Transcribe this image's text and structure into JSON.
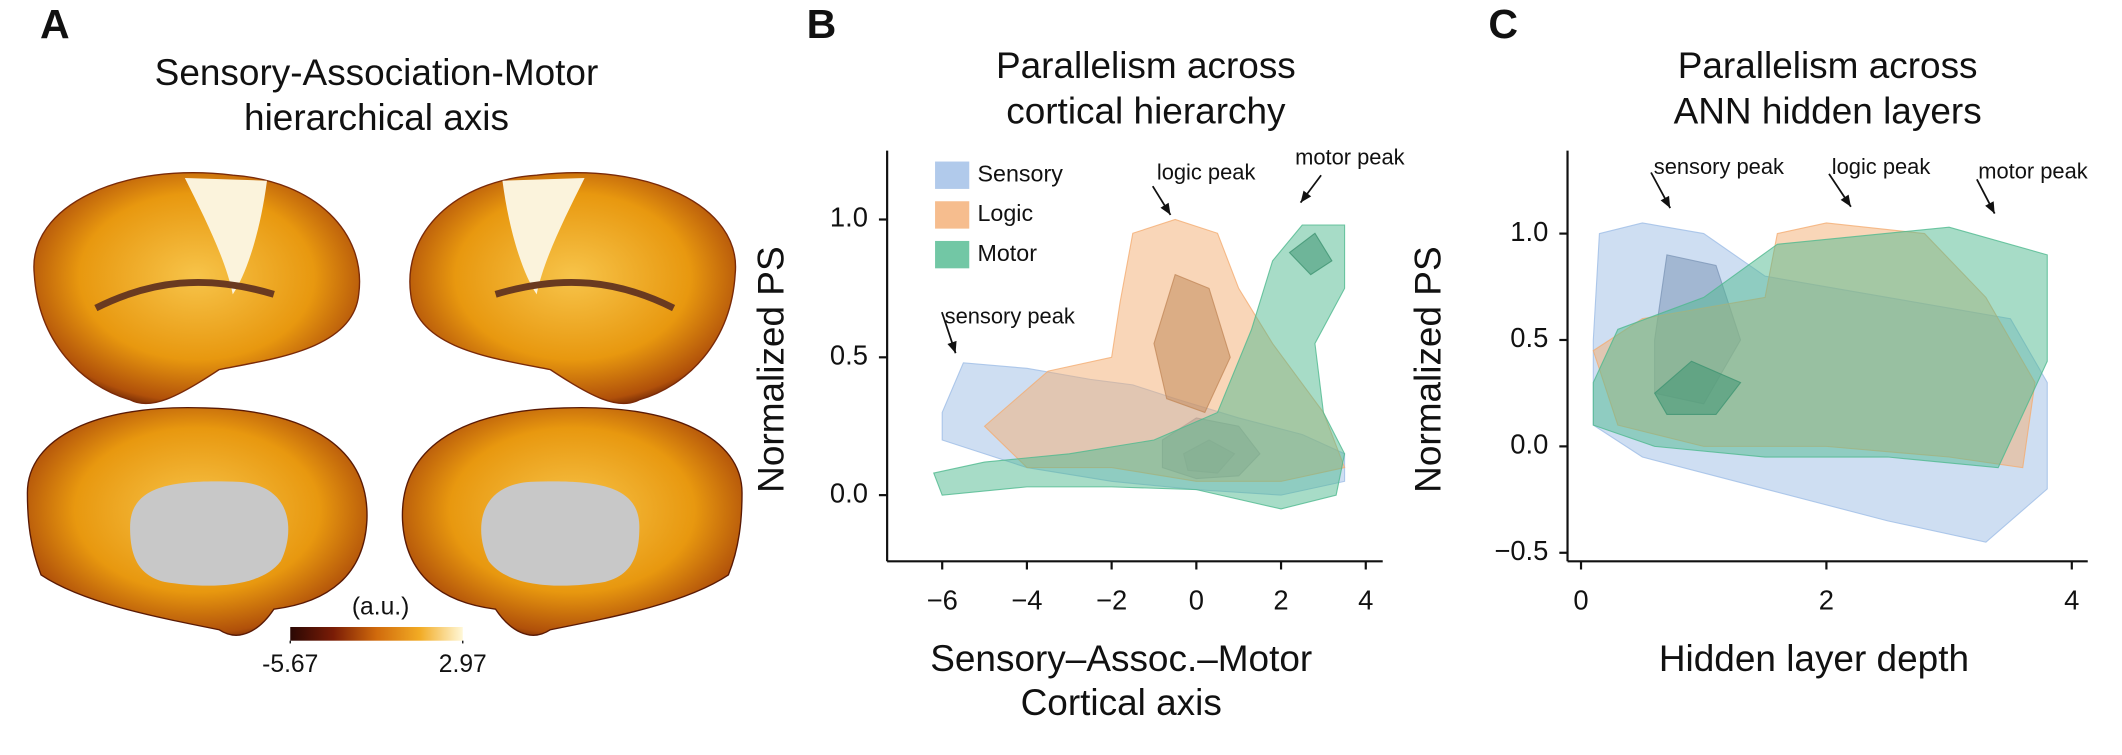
{
  "chart_data": [
    {
      "type": "colorbar",
      "panel": "A",
      "title": [
        "Sensory-Association-Motor",
        "hierarchical axis"
      ],
      "label": "(a.u.)",
      "clim": [
        -5.67,
        2.97
      ],
      "ticks": [
        -5.67,
        2.97
      ],
      "colors": [
        "#2a0804",
        "#7a1c06",
        "#d06a0c",
        "#f2ab24",
        "#fff8d8"
      ]
    },
    {
      "type": "kde",
      "panel": "B",
      "title": [
        "Parallelism across",
        "cortical hierarchy"
      ],
      "xlabel": [
        "Sensory–Assoc.–Motor",
        "Cortical axis"
      ],
      "ylabel": "Normalized PS",
      "xlim": [
        -7.3,
        4.4
      ],
      "ylim": [
        -0.24,
        1.25
      ],
      "xticks": [
        {
          "value": -6,
          "label": "−6"
        },
        {
          "value": -4,
          "label": "−4"
        },
        {
          "value": -2,
          "label": "−2"
        },
        0,
        2,
        4
      ],
      "yticks": [
        {
          "value": 0,
          "label": "0.0"
        },
        {
          "value": 0.5,
          "label": "0.5"
        },
        {
          "value": 1,
          "label": "1.0"
        }
      ],
      "annotations": [
        "sensory peak",
        "logic peak",
        "motor peak"
      ],
      "series": [
        {
          "name": "Sensory",
          "color": "#9dbde6",
          "contours": [
            {
              "x": [
                -6.0,
                -5.5,
                -4,
                -2.5,
                -1.5,
                -0.5,
                1,
                2.5,
                3.5,
                3.5,
                2,
                0,
                -2,
                -4,
                -6
              ],
              "y": [
                0.3,
                0.48,
                0.46,
                0.42,
                0.4,
                0.35,
                0.28,
                0.22,
                0.15,
                0.05,
                0.0,
                0.02,
                0.05,
                0.1,
                0.2
              ]
            },
            {
              "x": [
                -0.8,
                0,
                1,
                1.5,
                1,
                0,
                -0.8
              ],
              "y": [
                0.2,
                0.28,
                0.25,
                0.15,
                0.07,
                0.06,
                0.1
              ]
            },
            {
              "x": [
                -0.3,
                0.3,
                0.9,
                0.5,
                -0.2
              ],
              "y": [
                0.15,
                0.2,
                0.15,
                0.08,
                0.09
              ]
            }
          ]
        },
        {
          "name": "Logic",
          "color": "#f4ad72",
          "contours": [
            {
              "x": [
                -3.5,
                -2,
                -1.8,
                -1.5,
                -0.5,
                0.5,
                1,
                1.8,
                3,
                3.5,
                2,
                0,
                -2,
                -4,
                -5
              ],
              "y": [
                0.45,
                0.5,
                0.7,
                0.95,
                1.0,
                0.95,
                0.75,
                0.55,
                0.3,
                0.1,
                0.05,
                0.05,
                0.1,
                0.1,
                0.25
              ]
            },
            {
              "x": [
                -1,
                -0.5,
                0.3,
                0.8,
                0.2,
                -0.7
              ],
              "y": [
                0.55,
                0.8,
                0.75,
                0.5,
                0.3,
                0.35
              ]
            }
          ]
        },
        {
          "name": "Motor",
          "color": "#4fb98f",
          "contours": [
            {
              "x": [
                1.8,
                2.5,
                3.5,
                3.5,
                2.8,
                3,
                3.5,
                3.3,
                2,
                0,
                -2,
                -4,
                -6,
                -6.2,
                -5,
                -3,
                -1,
                0.5,
                1.3
              ],
              "y": [
                0.85,
                0.98,
                0.98,
                0.75,
                0.55,
                0.3,
                0.15,
                0.0,
                -0.05,
                0.02,
                0.03,
                0.03,
                0.0,
                0.08,
                0.12,
                0.15,
                0.2,
                0.3,
                0.6
              ]
            },
            {
              "x": [
                2.2,
                2.8,
                3.2,
                2.7
              ],
              "y": [
                0.88,
                0.95,
                0.85,
                0.8
              ]
            }
          ]
        }
      ]
    },
    {
      "type": "kde",
      "panel": "C",
      "title": [
        "Parallelism across",
        "ANN hidden layers"
      ],
      "xlabel": [
        "Hidden layer depth"
      ],
      "ylabel": "Normalized PS",
      "xlim": [
        -0.11,
        4.13
      ],
      "ylim": [
        -0.54,
        1.39
      ],
      "xticks": [
        0,
        2,
        4
      ],
      "yticks": [
        {
          "value": -0.5,
          "label": "−0.5"
        },
        {
          "value": 0,
          "label": "0.0"
        },
        {
          "value": 0.5,
          "label": "0.5"
        },
        {
          "value": 1,
          "label": "1.0"
        }
      ],
      "annotations": [
        "sensory peak",
        "logic peak",
        "motor peak"
      ],
      "series": [
        {
          "color": "#9dbde6",
          "contours": [
            {
              "x": [
                0.1,
                0.15,
                0.5,
                1,
                1.5,
                2.5,
                3.5,
                3.8,
                3.8,
                3.3,
                2.5,
                1.5,
                0.5,
                0.1
              ],
              "y": [
                0.5,
                1.0,
                1.05,
                1.0,
                0.8,
                0.7,
                0.6,
                0.3,
                -0.2,
                -0.45,
                -0.35,
                -0.2,
                -0.05,
                0.1
              ]
            },
            {
              "x": [
                0.6,
                0.7,
                1.1,
                1.3,
                1.0,
                0.6
              ],
              "y": [
                0.5,
                0.9,
                0.85,
                0.5,
                0.2,
                0.25
              ]
            }
          ]
        },
        {
          "color": "#f4ad72",
          "contours": [
            {
              "x": [
                0.1,
                0.5,
                1.5,
                1.6,
                2,
                2.8,
                3.3,
                3.7,
                3.6,
                3,
                2,
                1,
                0.3
              ],
              "y": [
                0.45,
                0.6,
                0.7,
                1.0,
                1.05,
                1.0,
                0.7,
                0.3,
                -0.1,
                -0.05,
                0.0,
                0.0,
                0.1
              ]
            }
          ]
        },
        {
          "color": "#4fb98f",
          "contours": [
            {
              "x": [
                0.1,
                0.3,
                1,
                1.6,
                3,
                3.8,
                3.8,
                3.4,
                2.5,
                1.5,
                0.6,
                0.1
              ],
              "y": [
                0.3,
                0.55,
                0.7,
                0.95,
                1.03,
                0.9,
                0.4,
                -0.1,
                -0.05,
                -0.05,
                0.0,
                0.1
              ]
            },
            {
              "x": [
                0.6,
                0.9,
                1.3,
                1.1,
                0.7
              ],
              "y": [
                0.25,
                0.4,
                0.3,
                0.15,
                0.15
              ]
            }
          ]
        }
      ]
    }
  ]
}
